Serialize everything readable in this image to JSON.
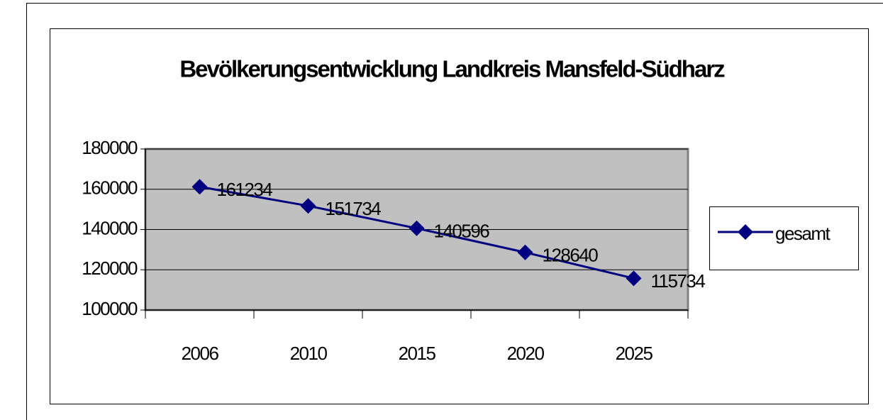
{
  "chart_data": {
    "type": "line",
    "title": "Bevölkerungsentwicklung Landkreis Mansfeld-Südharz",
    "categories": [
      "2006",
      "2010",
      "2015",
      "2020",
      "2025"
    ],
    "series": [
      {
        "name": "gesamt",
        "color": "#000080",
        "values": [
          161234,
          151734,
          140596,
          128640,
          115734
        ]
      }
    ],
    "ylim": [
      100000,
      180000
    ],
    "yticks": [
      100000,
      120000,
      140000,
      160000,
      180000
    ],
    "grid": true,
    "legend": "right",
    "plot_background": "#c0c0c0"
  }
}
